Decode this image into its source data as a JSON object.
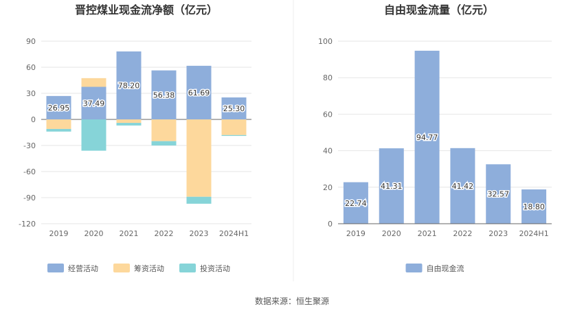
{
  "chart_data": [
    {
      "type": "bar",
      "stacked": true,
      "title": "晋控煤业现金流净额（亿元）",
      "categories": [
        "2019",
        "2020",
        "2021",
        "2022",
        "2023",
        "2024H1"
      ],
      "ylim": [
        -120,
        90
      ],
      "yticks": [
        90,
        60,
        30,
        0,
        -30,
        -60,
        -90,
        -120
      ],
      "grid": true,
      "legend_position": "bottom",
      "series": [
        {
          "name": "经营活动",
          "color": "#8eaedb",
          "values": [
            26.95,
            37.49,
            78.2,
            56.38,
            61.69,
            25.3
          ],
          "labels": [
            "26.95",
            "37.49",
            "78.20",
            "56.38",
            "61.69",
            "25.30"
          ]
        },
        {
          "name": "筹资活动",
          "color": "#fdd89c",
          "values": [
            -11,
            10,
            -4,
            -25,
            -89,
            -18
          ]
        },
        {
          "name": "投资活动",
          "color": "#86d4d8",
          "values": [
            -3,
            -36,
            -3,
            -5,
            -8,
            -1
          ]
        }
      ]
    },
    {
      "type": "bar",
      "title": "自由现金流量（亿元）",
      "categories": [
        "2019",
        "2020",
        "2021",
        "2022",
        "2023",
        "2024H1"
      ],
      "ylim": [
        0,
        100
      ],
      "yticks": [
        100,
        80,
        60,
        40,
        20,
        0
      ],
      "grid": true,
      "legend_position": "bottom",
      "series": [
        {
          "name": "自由现金流",
          "color": "#8eaedb",
          "values": [
            22.74,
            41.31,
            94.77,
            41.42,
            32.57,
            18.8
          ],
          "labels": [
            "22.74",
            "41.31",
            "94.77",
            "41.42",
            "32.57",
            "18.80"
          ]
        }
      ]
    }
  ],
  "source": "数据来源：恒生聚源"
}
